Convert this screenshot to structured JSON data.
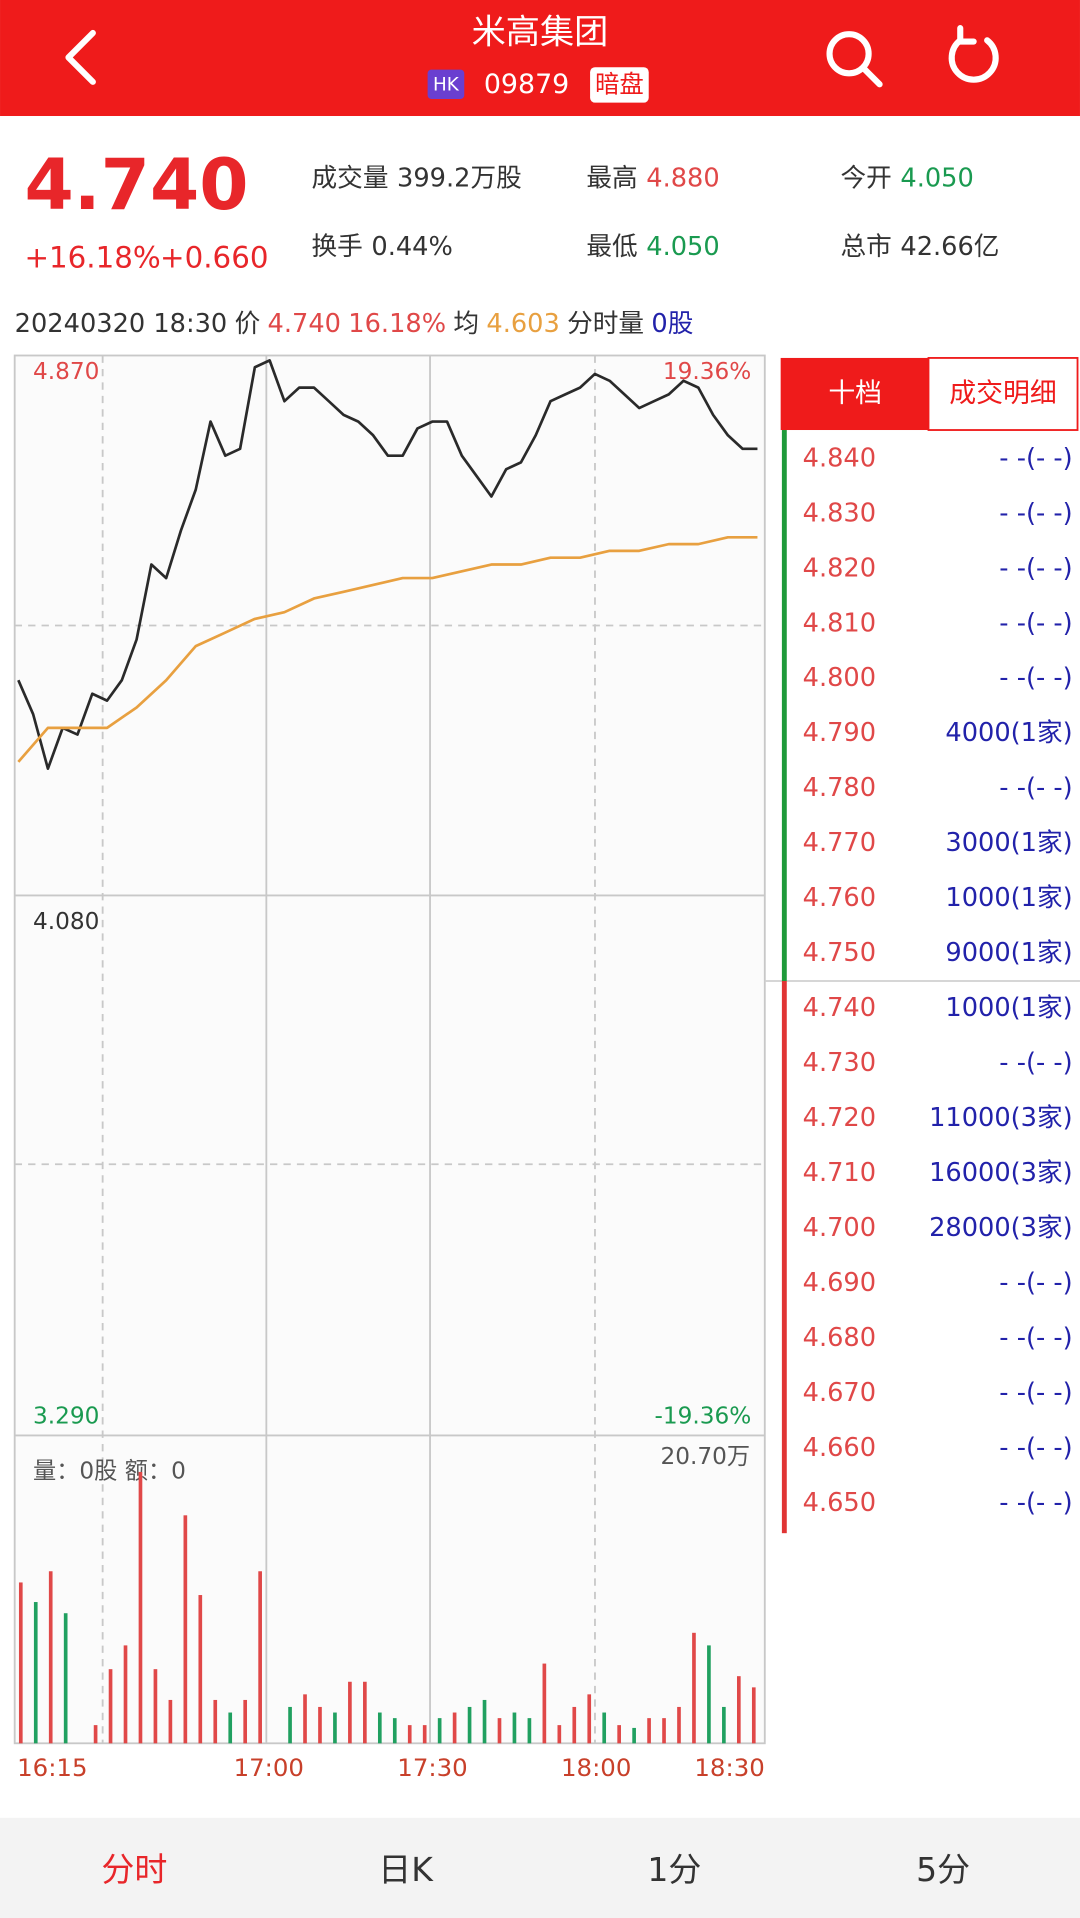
{
  "header": {
    "title": "米高集团",
    "market": "HK",
    "code": "09879",
    "tag": "暗盘"
  },
  "quote": {
    "price": "4.740",
    "change_pct": "+16.18%",
    "change": "+0.660"
  },
  "stats": [
    {
      "label": "成交量",
      "value": "399.2万股"
    },
    {
      "label": "最高",
      "value": "4.880"
    },
    {
      "label": "今开",
      "value": "4.050"
    },
    {
      "label": "换手",
      "value": "0.44%"
    },
    {
      "label": "最低",
      "value": "4.050"
    },
    {
      "label": "总市",
      "value": "42.66亿"
    }
  ],
  "info": {
    "datetime": "20240320 18:30",
    "price_label": "价",
    "price": "4.740",
    "pct": "16.18%",
    "avg_label": "均",
    "avg": "4.603",
    "vol_label": "分时量",
    "vol": "0股"
  },
  "chart_data": [
    {
      "type": "line",
      "ylim": [
        3.29,
        4.87
      ],
      "yticks": [
        {
          "value": 4.87,
          "label": "4.870"
        },
        {
          "value": 4.08,
          "label": "4.080"
        },
        {
          "value": 3.29,
          "label": "3.290"
        }
      ],
      "pct_labels": [
        "19.36%",
        "-19.36%"
      ],
      "series": [
        {
          "color": "#2a2a2a",
          "values": [
            4.4,
            4.35,
            4.27,
            4.33,
            4.32,
            4.38,
            4.37,
            4.4,
            4.46,
            4.57,
            4.55,
            4.62,
            4.68,
            4.78,
            4.73,
            4.74,
            4.86,
            4.87,
            4.81,
            4.83,
            4.83,
            4.81,
            4.79,
            4.78,
            4.76,
            4.73,
            4.73,
            4.77,
            4.78,
            4.78,
            4.73,
            4.7,
            4.67,
            4.71,
            4.72,
            4.76,
            4.81,
            4.82,
            4.83,
            4.85,
            4.84,
            4.82,
            4.8,
            4.81,
            4.82,
            4.84,
            4.83,
            4.79,
            4.76,
            4.74,
            4.74
          ]
        },
        {
          "color": "#e8a040",
          "values": [
            4.28,
            4.33,
            4.33,
            4.33,
            4.36,
            4.4,
            4.45,
            4.47,
            4.49,
            4.5,
            4.52,
            4.53,
            4.54,
            4.55,
            4.55,
            4.56,
            4.57,
            4.57,
            4.58,
            4.58,
            4.59,
            4.59,
            4.6,
            4.6,
            4.61,
            4.61
          ]
        }
      ]
    },
    {
      "type": "bar",
      "label": "量：0股 额：0",
      "ylim": [
        0,
        20.7
      ],
      "yticks": [
        {
          "value": 20.7,
          "label": "20.70万"
        }
      ],
      "x_labels": [
        "16:15",
        "17:00",
        "17:30",
        "18:00",
        "18:30"
      ],
      "values": [
        11.5,
        10.1,
        12.3,
        9.3,
        0,
        1.3,
        5.3,
        7.0,
        19.4,
        5.3,
        3.1,
        16.3,
        10.6,
        3.1,
        2.2,
        3.1,
        12.3,
        0,
        2.6,
        3.5,
        2.6,
        2.2,
        4.4,
        4.4,
        2.2,
        1.8,
        1.3,
        1.3,
        1.8,
        2.2,
        2.6,
        3.1,
        1.8,
        2.2,
        1.8,
        5.7,
        1.3,
        2.6,
        3.5,
        2.2,
        1.3,
        1.1,
        1.8,
        1.8,
        2.6,
        7.9,
        7.0,
        2.6,
        4.8,
        4.0
      ],
      "colors": [
        "#e04848",
        "#20a060",
        "#e04848",
        "#20a060",
        "#e04848",
        "#e04848",
        "#e04848",
        "#e04848",
        "#e04848",
        "#e04848",
        "#e04848",
        "#e04848",
        "#e04848",
        "#e04848",
        "#20a060",
        "#e04848",
        "#e04848",
        "#e04848",
        "#20a060",
        "#e04848",
        "#e04848",
        "#20a060",
        "#e04848",
        "#e04848",
        "#20a060",
        "#20a060",
        "#e04848",
        "#e04848",
        "#20a060",
        "#e04848",
        "#20a060",
        "#20a060",
        "#e04848",
        "#20a060",
        "#20a060",
        "#e04848",
        "#e04848",
        "#e04848",
        "#e04848",
        "#20a060",
        "#e04848",
        "#20a060",
        "#e04848",
        "#e04848",
        "#e04848",
        "#e04848",
        "#20a060",
        "#20a060",
        "#e04848",
        "#e04848"
      ]
    }
  ],
  "order_book": {
    "tabs": [
      "十档",
      "成交明细"
    ],
    "asks": [
      {
        "price": "4.840",
        "volume": "- -(- -)"
      },
      {
        "price": "4.830",
        "volume": "- -(- -)"
      },
      {
        "price": "4.820",
        "volume": "- -(- -)"
      },
      {
        "price": "4.810",
        "volume": "- -(- -)"
      },
      {
        "price": "4.800",
        "volume": "- -(- -)"
      },
      {
        "price": "4.790",
        "volume": "4000(1家)"
      },
      {
        "price": "4.780",
        "volume": "- -(- -)"
      },
      {
        "price": "4.770",
        "volume": "3000(1家)"
      },
      {
        "price": "4.760",
        "volume": "1000(1家)"
      },
      {
        "price": "4.750",
        "volume": "9000(1家)"
      }
    ],
    "bids": [
      {
        "price": "4.740",
        "volume": "1000(1家)"
      },
      {
        "price": "4.730",
        "volume": "- -(- -)"
      },
      {
        "price": "4.720",
        "volume": "11000(3家)"
      },
      {
        "price": "4.710",
        "volume": "16000(3家)"
      },
      {
        "price": "4.700",
        "volume": "28000(3家)"
      },
      {
        "price": "4.690",
        "volume": "- -(- -)"
      },
      {
        "price": "4.680",
        "volume": "- -(- -)"
      },
      {
        "price": "4.670",
        "volume": "- -(- -)"
      },
      {
        "price": "4.660",
        "volume": "- -(- -)"
      },
      {
        "price": "4.650",
        "volume": "- -(- -)"
      }
    ]
  },
  "nav": [
    "分时",
    "日K",
    "1分",
    "5分"
  ]
}
